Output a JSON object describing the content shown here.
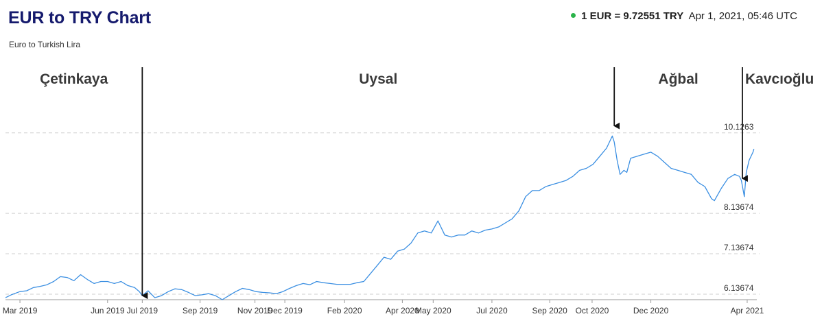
{
  "header": {
    "title": "EUR to TRY Chart",
    "subtitle": "Euro to Turkish Lira",
    "rate_value": "1 EUR = 9.72551 TRY",
    "rate_time": "Apr 1, 2021, 05:46 UTC",
    "status_color": "#2bb34a"
  },
  "chart_data": {
    "type": "line",
    "title": "EUR to TRY Chart",
    "subtitle": "Euro to Turkish Lira",
    "xlabel": "",
    "ylabel": "",
    "grid": "horizontal dashed",
    "line_color": "#3b8fe2",
    "xlim": [
      "2019-02-14",
      "2021-04-04"
    ],
    "ylim": [
      6.0,
      10.7
    ],
    "y_ticks": [
      "6.13674",
      "7.13674",
      "8.13674",
      "10.1263"
    ],
    "x_ticks": [
      "Mar 2019",
      "Jun 2019",
      "Jul 2019",
      "Sep 2019",
      "Nov 2019",
      "Dec 2019",
      "Feb 2020",
      "Apr 2020",
      "May 2020",
      "Jul 2020",
      "Sep 2020",
      "Oct 2020",
      "Dec 2020",
      "Apr 2021"
    ],
    "x_tick_dates": [
      "2019-03-01",
      "2019-05-31",
      "2019-07-06",
      "2019-09-04",
      "2019-10-31",
      "2019-12-01",
      "2020-02-01",
      "2020-04-01",
      "2020-05-03",
      "2020-07-03",
      "2020-09-01",
      "2020-10-15",
      "2020-12-15",
      "2021-03-25"
    ],
    "periods": [
      {
        "name": "Çetinkaya",
        "start": "2019-02-14"
      },
      {
        "name": "Uysal",
        "start": "2019-07-06"
      },
      {
        "name": "Ağbal",
        "start": "2020-11-07"
      },
      {
        "name": "Kavcıoğlu",
        "start": "2021-03-20"
      }
    ],
    "arrows": [
      {
        "date": "2019-07-06",
        "value": 6.1
      },
      {
        "date": "2020-11-07",
        "value": 10.3
      },
      {
        "date": "2021-03-20",
        "value": 9.0
      }
    ],
    "points": [
      [
        "2019-02-14",
        6.05
      ],
      [
        "2019-02-20",
        6.12
      ],
      [
        "2019-03-01",
        6.2
      ],
      [
        "2019-03-08",
        6.22
      ],
      [
        "2019-03-15",
        6.3
      ],
      [
        "2019-03-22",
        6.33
      ],
      [
        "2019-03-29",
        6.37
      ],
      [
        "2019-04-05",
        6.45
      ],
      [
        "2019-04-12",
        6.57
      ],
      [
        "2019-04-19",
        6.55
      ],
      [
        "2019-04-26",
        6.47
      ],
      [
        "2019-05-03",
        6.62
      ],
      [
        "2019-05-10",
        6.5
      ],
      [
        "2019-05-17",
        6.4
      ],
      [
        "2019-05-24",
        6.45
      ],
      [
        "2019-05-31",
        6.45
      ],
      [
        "2019-06-07",
        6.4
      ],
      [
        "2019-06-14",
        6.45
      ],
      [
        "2019-06-21",
        6.35
      ],
      [
        "2019-06-28",
        6.3
      ],
      [
        "2019-07-03",
        6.2
      ],
      [
        "2019-07-06",
        6.1
      ],
      [
        "2019-07-12",
        6.22
      ],
      [
        "2019-07-19",
        6.05
      ],
      [
        "2019-07-26",
        6.1
      ],
      [
        "2019-08-02",
        6.2
      ],
      [
        "2019-08-09",
        6.27
      ],
      [
        "2019-08-16",
        6.25
      ],
      [
        "2019-08-23",
        6.18
      ],
      [
        "2019-08-30",
        6.1
      ],
      [
        "2019-09-06",
        6.12
      ],
      [
        "2019-09-13",
        6.15
      ],
      [
        "2019-09-20",
        6.1
      ],
      [
        "2019-09-27",
        6.0
      ],
      [
        "2019-10-04",
        6.1
      ],
      [
        "2019-10-11",
        6.2
      ],
      [
        "2019-10-18",
        6.28
      ],
      [
        "2019-10-25",
        6.25
      ],
      [
        "2019-11-01",
        6.2
      ],
      [
        "2019-11-08",
        6.18
      ],
      [
        "2019-11-15",
        6.17
      ],
      [
        "2019-11-22",
        6.15
      ],
      [
        "2019-11-29",
        6.2
      ],
      [
        "2019-12-06",
        6.28
      ],
      [
        "2019-12-13",
        6.35
      ],
      [
        "2019-12-20",
        6.4
      ],
      [
        "2019-12-27",
        6.37
      ],
      [
        "2020-01-03",
        6.45
      ],
      [
        "2020-01-10",
        6.42
      ],
      [
        "2020-01-17",
        6.4
      ],
      [
        "2020-01-24",
        6.38
      ],
      [
        "2020-01-31",
        6.38
      ],
      [
        "2020-02-07",
        6.38
      ],
      [
        "2020-02-14",
        6.42
      ],
      [
        "2020-02-21",
        6.45
      ],
      [
        "2020-02-28",
        6.65
      ],
      [
        "2020-03-06",
        6.85
      ],
      [
        "2020-03-13",
        7.05
      ],
      [
        "2020-03-20",
        7.0
      ],
      [
        "2020-03-27",
        7.2
      ],
      [
        "2020-04-03",
        7.25
      ],
      [
        "2020-04-10",
        7.4
      ],
      [
        "2020-04-17",
        7.65
      ],
      [
        "2020-04-24",
        7.7
      ],
      [
        "2020-05-01",
        7.65
      ],
      [
        "2020-05-08",
        7.95
      ],
      [
        "2020-05-15",
        7.6
      ],
      [
        "2020-05-22",
        7.55
      ],
      [
        "2020-05-29",
        7.6
      ],
      [
        "2020-06-05",
        7.6
      ],
      [
        "2020-06-12",
        7.7
      ],
      [
        "2020-06-19",
        7.65
      ],
      [
        "2020-06-26",
        7.72
      ],
      [
        "2020-07-03",
        7.75
      ],
      [
        "2020-07-10",
        7.8
      ],
      [
        "2020-07-17",
        7.9
      ],
      [
        "2020-07-24",
        8.0
      ],
      [
        "2020-07-31",
        8.2
      ],
      [
        "2020-08-07",
        8.55
      ],
      [
        "2020-08-14",
        8.7
      ],
      [
        "2020-08-21",
        8.7
      ],
      [
        "2020-08-28",
        8.8
      ],
      [
        "2020-09-04",
        8.85
      ],
      [
        "2020-09-11",
        8.9
      ],
      [
        "2020-09-18",
        8.95
      ],
      [
        "2020-09-25",
        9.05
      ],
      [
        "2020-10-02",
        9.2
      ],
      [
        "2020-10-09",
        9.25
      ],
      [
        "2020-10-16",
        9.35
      ],
      [
        "2020-10-23",
        9.55
      ],
      [
        "2020-10-30",
        9.75
      ],
      [
        "2020-11-05",
        10.05
      ],
      [
        "2020-11-07",
        9.9
      ],
      [
        "2020-11-10",
        9.45
      ],
      [
        "2020-11-13",
        9.1
      ],
      [
        "2020-11-17",
        9.2
      ],
      [
        "2020-11-20",
        9.15
      ],
      [
        "2020-11-24",
        9.5
      ],
      [
        "2020-12-01",
        9.55
      ],
      [
        "2020-12-08",
        9.6
      ],
      [
        "2020-12-15",
        9.65
      ],
      [
        "2020-12-22",
        9.55
      ],
      [
        "2020-12-29",
        9.4
      ],
      [
        "2021-01-05",
        9.25
      ],
      [
        "2021-01-12",
        9.2
      ],
      [
        "2021-01-19",
        9.15
      ],
      [
        "2021-01-26",
        9.1
      ],
      [
        "2021-02-02",
        8.9
      ],
      [
        "2021-02-09",
        8.8
      ],
      [
        "2021-02-16",
        8.5
      ],
      [
        "2021-02-19",
        8.45
      ],
      [
        "2021-02-26",
        8.75
      ],
      [
        "2021-03-05",
        9.0
      ],
      [
        "2021-03-12",
        9.1
      ],
      [
        "2021-03-17",
        9.05
      ],
      [
        "2021-03-19",
        8.95
      ],
      [
        "2021-03-22",
        8.55
      ],
      [
        "2021-03-24",
        9.15
      ],
      [
        "2021-03-27",
        9.45
      ],
      [
        "2021-03-31",
        9.65
      ],
      [
        "2021-04-01",
        9.73
      ]
    ]
  }
}
